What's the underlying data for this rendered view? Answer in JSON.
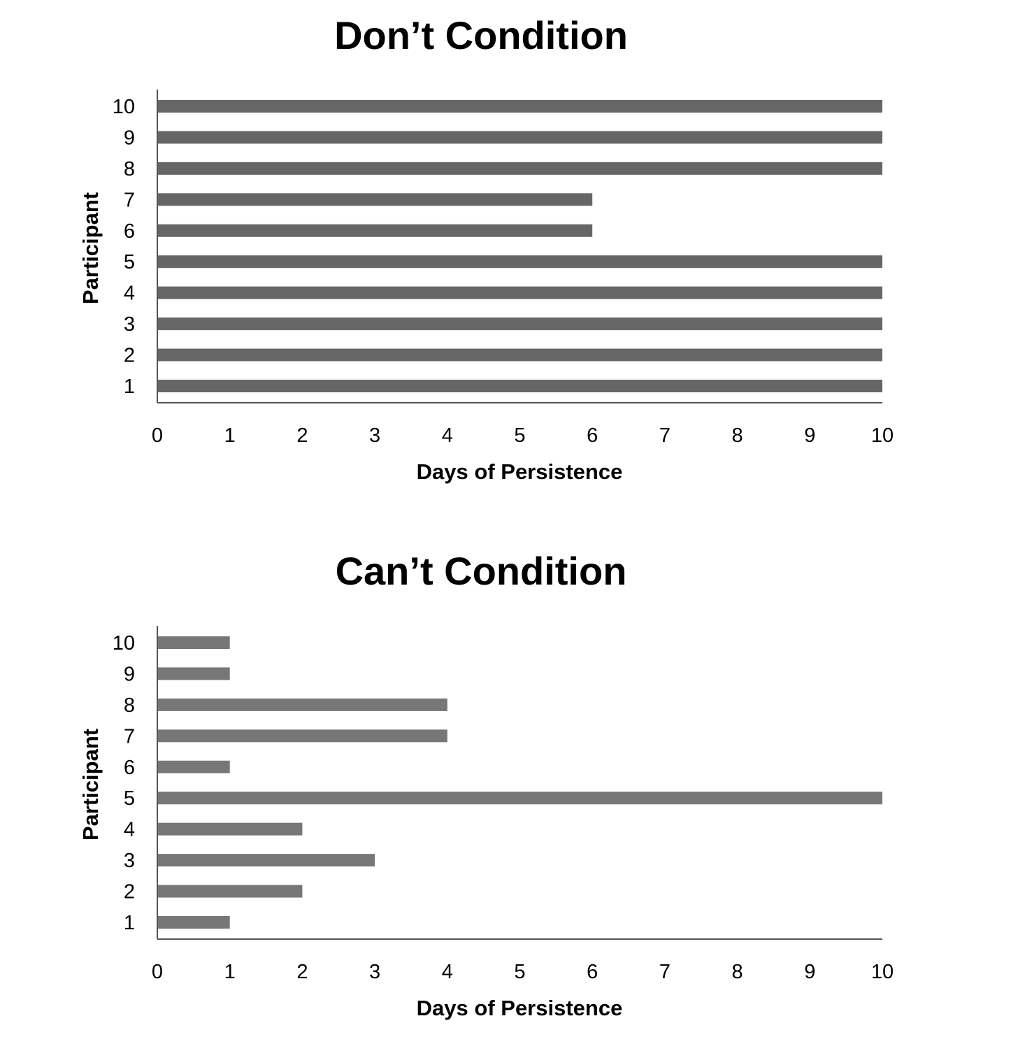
{
  "chart_data": [
    {
      "type": "bar",
      "orientation": "horizontal",
      "title": "Don’t Condition",
      "xlabel": "Days of Persistence",
      "ylabel": "Participant",
      "categories": [
        "1",
        "2",
        "3",
        "4",
        "5",
        "6",
        "7",
        "8",
        "9",
        "10"
      ],
      "values": [
        10,
        10,
        10,
        10,
        10,
        6,
        6,
        10,
        10,
        10
      ],
      "xlim": [
        0,
        10
      ],
      "xticks": [
        "0",
        "1",
        "2",
        "3",
        "4",
        "5",
        "6",
        "7",
        "8",
        "9",
        "10"
      ],
      "grid": false,
      "bar_color": "#666666"
    },
    {
      "type": "bar",
      "orientation": "horizontal",
      "title": "Can’t Condition",
      "xlabel": "Days of Persistence",
      "ylabel": "Participant",
      "categories": [
        "1",
        "2",
        "3",
        "4",
        "5",
        "6",
        "7",
        "8",
        "9",
        "10"
      ],
      "values": [
        1,
        2,
        3,
        2,
        10,
        1,
        4,
        4,
        1,
        1
      ],
      "xlim": [
        0,
        10
      ],
      "xticks": [
        "0",
        "1",
        "2",
        "3",
        "4",
        "5",
        "6",
        "7",
        "8",
        "9",
        "10"
      ],
      "grid": false,
      "bar_color": "#777777"
    }
  ]
}
